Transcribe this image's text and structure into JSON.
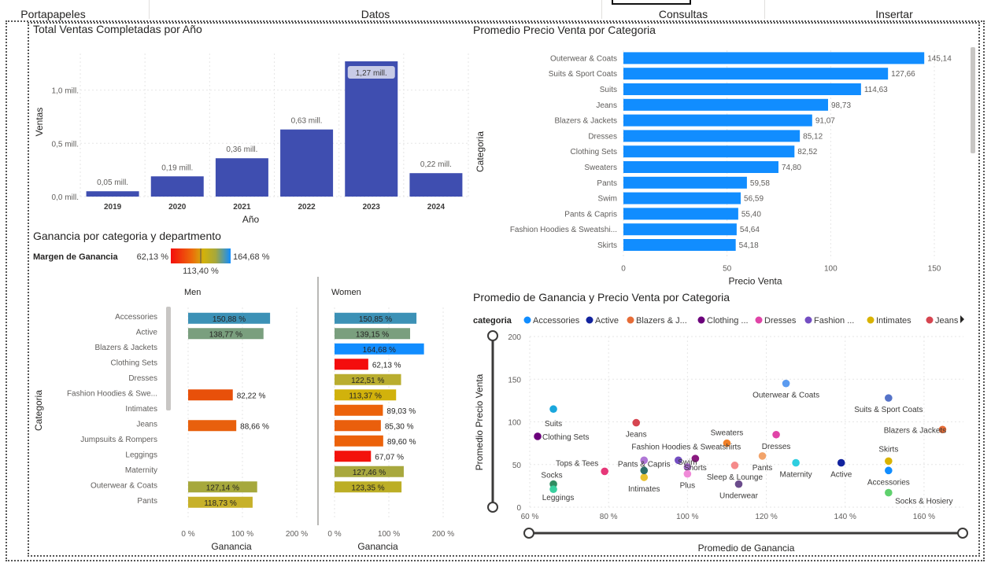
{
  "ribbon": {
    "tabs": [
      "Portapapeles",
      "Datos",
      "Consultas",
      "Insertar"
    ]
  },
  "colors": {
    "bar_blue_dark": "#3f4eb0",
    "bar_blue": "#118dff",
    "grid": "#e6e6e6",
    "axis_text": "#605e5c"
  },
  "chart_data": [
    {
      "id": "ventas_por_anio",
      "type": "bar",
      "title": "Total Ventas Completadas por Año",
      "xlabel": "Año",
      "ylabel": "Ventas",
      "categories": [
        "2019",
        "2020",
        "2021",
        "2022",
        "2023",
        "2024"
      ],
      "values": [
        0.05,
        0.19,
        0.36,
        0.63,
        1.27,
        0.22
      ],
      "data_labels": [
        "0,05 mill.",
        "0,19 mill.",
        "0,36 mill.",
        "0,63 mill.",
        "1,27 mill.",
        "0,22 mill."
      ],
      "yticks": [
        "0,0 mill.",
        "0,5 mill.",
        "1,0 mill."
      ],
      "ytick_values": [
        0,
        0.5,
        1.0
      ],
      "ylim": [
        0,
        1.27
      ],
      "grid": true
    },
    {
      "id": "precio_por_categoria",
      "type": "bar",
      "orientation": "horizontal",
      "title": "Promedio Precio Venta por Categoria",
      "xlabel": "Precio Venta",
      "ylabel": "Categoria",
      "categories": [
        "Outerwear & Coats",
        "Suits & Sport Coats",
        "Suits",
        "Jeans",
        "Blazers & Jackets",
        "Dresses",
        "Clothing Sets",
        "Sweaters",
        "Pants",
        "Swim",
        "Pants & Capris",
        "Fashion Hoodies & Sweatshi...",
        "Skirts"
      ],
      "values": [
        145.14,
        127.66,
        114.63,
        98.73,
        91.07,
        85.12,
        82.52,
        74.8,
        59.58,
        56.59,
        55.4,
        54.64,
        54.18
      ],
      "data_labels": [
        "145,14",
        "127,66",
        "114,63",
        "98,73",
        "91,07",
        "85,12",
        "82,52",
        "74,80",
        "59,58",
        "56,59",
        "55,40",
        "54,64",
        "54,18"
      ],
      "xticks": [
        "0",
        "50",
        "100",
        "150"
      ],
      "xtick_values": [
        0,
        50,
        100,
        150
      ],
      "xlim": [
        0,
        150
      ],
      "grid": true
    },
    {
      "id": "ganancia_categoria_departamento",
      "type": "bar",
      "orientation": "horizontal",
      "title": "Ganancia por categoria y departmento",
      "legend": {
        "title": "Margen de Ganancia",
        "min_label": "62,13 %",
        "max_label": "164,68 %",
        "mid_label": "113,40 %"
      },
      "ylabel": "Categoria",
      "xlabel": "Ganancia",
      "categories": [
        "Accessories",
        "Active",
        "Blazers & Jackets",
        "Clothing Sets",
        "Dresses",
        "Fashion Hoodies & Swe...",
        "Intimates",
        "Jeans",
        "Jumpsuits & Rompers",
        "Leggings",
        "Maternity",
        "Outerwear & Coats",
        "Pants"
      ],
      "xticks": [
        "0 %",
        "100 %",
        "200 %"
      ],
      "xtick_values": [
        0,
        100,
        200
      ],
      "xlim": [
        0,
        200
      ],
      "series": [
        {
          "name": "Men",
          "values": [
            150.88,
            138.77,
            null,
            null,
            null,
            82.22,
            null,
            88.66,
            null,
            null,
            null,
            127.14,
            118.73
          ],
          "labels": [
            "150,88 %",
            "138,77 %",
            "",
            "",
            "",
            "82,22 %",
            "",
            "88,66 %",
            "",
            "",
            "",
            "127,14 %",
            "118,73 %"
          ],
          "colors": [
            "#3c91b6",
            "#7a9f7e",
            "",
            "",
            "",
            "#e8500a",
            "",
            "#e8600d",
            "",
            "",
            "",
            "#a6a83c",
            "#c7b12a"
          ]
        },
        {
          "name": "Women",
          "values": [
            150.85,
            139.15,
            164.68,
            62.13,
            122.51,
            113.37,
            89.03,
            85.3,
            89.6,
            67.07,
            127.46,
            123.35,
            null
          ],
          "labels": [
            "150,85 %",
            "139,15 %",
            "164,68 %",
            "62,13 %",
            "122,51 %",
            "113,37 %",
            "89,03 %",
            "85,30 %",
            "89,60 %",
            "67,07 %",
            "127,46 %",
            "123,35 %",
            ""
          ],
          "colors": [
            "#3c91b6",
            "#7a9f7e",
            "#118dff",
            "#f40d0d",
            "#b9ad2f",
            "#d1b20c",
            "#ec620a",
            "#ea5f0c",
            "#ec620a",
            "#f3120c",
            "#a8a83e",
            "#bcae26",
            ""
          ]
        }
      ]
    },
    {
      "id": "ganancia_vs_precio",
      "type": "scatter",
      "title": "Promedio de Ganancia y Precio Venta por Categoria",
      "xlabel": "Promedio de Ganancia",
      "ylabel": "Promedio Precio Venta",
      "legend": {
        "title": "categoria",
        "placement": "top",
        "items": [
          {
            "name": "Accessories",
            "color": "#118dff"
          },
          {
            "name": "Active",
            "color": "#12239e"
          },
          {
            "name": "Blazers & J...",
            "color": "#e66c37"
          },
          {
            "name": "Clothing ...",
            "color": "#6b007b"
          },
          {
            "name": "Dresses",
            "color": "#e044a7"
          },
          {
            "name": "Fashion ...",
            "color": "#744ec2"
          },
          {
            "name": "Intimates",
            "color": "#d9b300"
          },
          {
            "name": "Jeans",
            "color": "#d64550"
          }
        ]
      },
      "xticks": [
        "60 %",
        "80 %",
        "100 %",
        "120 %",
        "140 %",
        "160 %"
      ],
      "xtick_values": [
        60,
        80,
        100,
        120,
        140,
        160
      ],
      "xlim": [
        60,
        170
      ],
      "yticks": [
        "0",
        "50",
        "100",
        "150",
        "200"
      ],
      "ytick_values": [
        0,
        50,
        100,
        150,
        200
      ],
      "ylim": [
        0,
        200
      ],
      "points": [
        {
          "label": "Outerwear & Coats",
          "x": 125,
          "y": 145,
          "color": "#5b9bf0"
        },
        {
          "label": "Suits & Sport Coats",
          "x": 151,
          "y": 128,
          "color": "#5573c8"
        },
        {
          "label": "Suits",
          "x": 66,
          "y": 115,
          "color": "#1aa7dd"
        },
        {
          "label": "Blazers & Jackets",
          "x": 164.7,
          "y": 91,
          "color": "#e66c37"
        },
        {
          "label": "Jeans",
          "x": 87,
          "y": 99,
          "color": "#d64550"
        },
        {
          "label": "Clothing Sets",
          "x": 62,
          "y": 83,
          "color": "#6b007b"
        },
        {
          "label": "Dresses",
          "x": 122.5,
          "y": 85,
          "color": "#e044a7"
        },
        {
          "label": "Sweaters",
          "x": 110,
          "y": 75,
          "color": "#f07f27"
        },
        {
          "label": "Skirts",
          "x": 151,
          "y": 54,
          "color": "#d9b300"
        },
        {
          "label": "Fashion Hoodies & Sweatshirts",
          "x": 97.7,
          "y": 55,
          "color": "#744ec2"
        },
        {
          "label": "Pants",
          "x": 119,
          "y": 60,
          "color": "#f2a36a"
        },
        {
          "label": "Tops & Tees",
          "x": 79,
          "y": 42,
          "color": "#e63778"
        },
        {
          "label": "Pants & Capris",
          "x": 89,
          "y": 55,
          "color": "#b077d6"
        },
        {
          "label": "Swim",
          "x": 102,
          "y": 57,
          "color": "#8a1a80"
        },
        {
          "label": "Shorts",
          "x": 100,
          "y": 47,
          "color": "#a366c9"
        },
        {
          "label": "Maternity",
          "x": 127.5,
          "y": 52,
          "color": "#2ecee0"
        },
        {
          "label": "Active",
          "x": 139,
          "y": 52,
          "color": "#12239e"
        },
        {
          "label": "Accessories",
          "x": 151,
          "y": 43,
          "color": "#118dff"
        },
        {
          "label": "Socks",
          "x": 66,
          "y": 27,
          "color": "#2f8c61"
        },
        {
          "label": "Leggings",
          "x": 66,
          "y": 21,
          "color": "#39d1a0"
        },
        {
          "label": "Intimates",
          "x": 89,
          "y": 35,
          "color": "#e8c22f"
        },
        {
          "label": "Plus",
          "x": 100,
          "y": 39,
          "color": "#f08ad8"
        },
        {
          "label": "Sleep & Lounge",
          "x": 112,
          "y": 49,
          "color": "#f58a8a"
        },
        {
          "label": "Underwear",
          "x": 113,
          "y": 27,
          "color": "#6b4c8c"
        },
        {
          "label": "Socks & Hosiery",
          "x": 151,
          "y": 17,
          "color": "#5fd16d"
        },
        {
          "label": "",
          "x": 89,
          "y": 43,
          "color": "#2b6f6a"
        }
      ]
    }
  ]
}
